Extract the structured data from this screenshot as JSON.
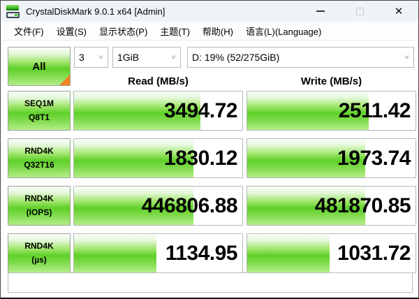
{
  "window": {
    "title": "CrystalDiskMark 9.0.1 x64 [Admin]"
  },
  "menu": {
    "file": "文件(F)",
    "settings": "设置(S)",
    "profile": "显示状态(P)",
    "theme": "主题(T)",
    "help": "帮助(H)",
    "language": "语言(L)(Language)"
  },
  "toolbar": {
    "all_button": "All",
    "test_count": "3",
    "test_size": "1GiB",
    "target_drive": "D: 19% (52/275GiB)",
    "chevron": "˅"
  },
  "columns": {
    "read": "Read (MB/s)",
    "write": "Write (MB/s)"
  },
  "rows": [
    {
      "name": "SEQ1M",
      "sub": "Q8T1",
      "read": "3494.72",
      "write": "2511.42",
      "read_fill": 75,
      "write_fill": 72
    },
    {
      "name": "RND4K",
      "sub": "Q32T16",
      "read": "1830.12",
      "write": "1973.74",
      "read_fill": 71,
      "write_fill": 70
    },
    {
      "name": "RND4K",
      "sub": "(IOPS)",
      "read": "446806.88",
      "write": "481870.85",
      "read_fill": 71,
      "write_fill": 70
    },
    {
      "name": "RND4K",
      "sub": "(µs)",
      "read": "1134.95",
      "write": "1031.72",
      "read_fill": 49,
      "write_fill": 49
    }
  ],
  "status_message": "",
  "colors": {
    "meter_green_mid": "#5fd02a",
    "corner_orange": "#f58220",
    "titlebar_bg": "#eff3f7"
  }
}
